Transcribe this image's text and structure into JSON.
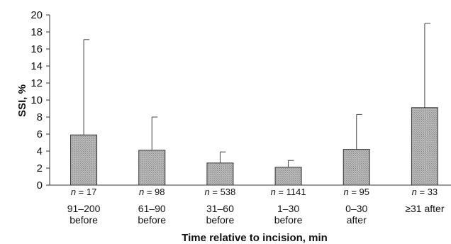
{
  "chart_data": {
    "type": "bar",
    "title": "",
    "xlabel": "Time relative to incision, min",
    "ylabel": "SSI, %",
    "ylim": [
      0,
      20
    ],
    "yticks": [
      0,
      2,
      4,
      6,
      8,
      10,
      12,
      14,
      16,
      18,
      20
    ],
    "grid": false,
    "categories": [
      [
        "91–200",
        "before"
      ],
      [
        "61–90",
        "before"
      ],
      [
        "31–60",
        "before"
      ],
      [
        "1–30",
        "before"
      ],
      [
        "0–30",
        "after"
      ],
      [
        "≥31 after"
      ]
    ],
    "n_labels": [
      "17",
      "98",
      "538",
      "1141",
      "95",
      "33"
    ],
    "n_prefix": "n",
    "values": [
      5.9,
      4.1,
      2.6,
      2.1,
      4.2,
      9.1
    ],
    "error_upper": [
      17.1,
      8.0,
      3.9,
      2.9,
      8.3,
      19.0
    ],
    "bar_color": "#a8a8a8"
  }
}
